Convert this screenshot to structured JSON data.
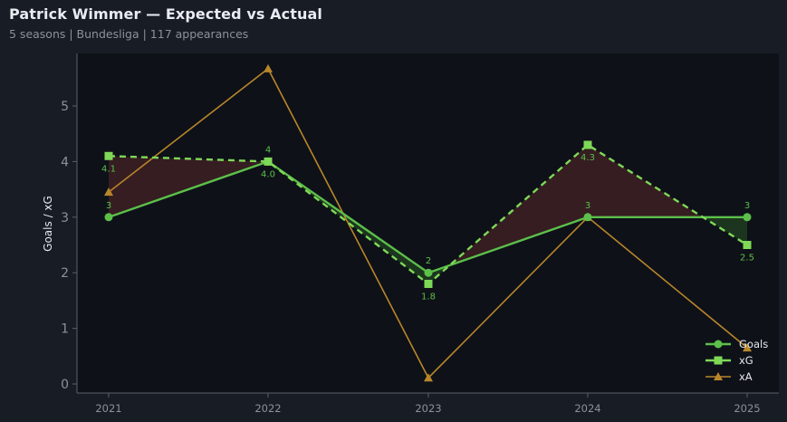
{
  "header": {
    "title": "Patrick Wimmer — Expected vs Actual",
    "subtitle": "5 seasons | Bundesliga | 117 appearances"
  },
  "chart_data": {
    "type": "line",
    "title": "Patrick Wimmer — Expected vs Actual",
    "subtitle": "5 seasons | Bundesliga | 117 appearances",
    "xlabel": "",
    "ylabel": "Goals / xG",
    "categories": [
      "2021",
      "2022",
      "2023",
      "2024",
      "2025"
    ],
    "yticks": [
      "0",
      "1",
      "2",
      "3",
      "4",
      "5"
    ],
    "ylim": [
      -0.17,
      5.95
    ],
    "grid": false,
    "legend_position": "lower right",
    "series": [
      {
        "name": "Goals",
        "values": [
          3,
          4,
          2,
          3,
          3
        ],
        "labels": [
          "3",
          "4",
          "2",
          "3",
          "3"
        ],
        "color": "#5cbf4a",
        "style": "solid",
        "marker": "circle"
      },
      {
        "name": "xG",
        "values": [
          4.1,
          4.0,
          1.8,
          4.3,
          2.5
        ],
        "labels": [
          "4.1",
          "4.0",
          "1.8",
          "4.3",
          "2.5"
        ],
        "color": "#7ed957",
        "style": "dashed",
        "marker": "square"
      },
      {
        "name": "xA",
        "values": [
          3.45,
          5.67,
          0.11,
          3.0,
          0.65
        ],
        "color": "#b8862a",
        "style": "solid",
        "marker": "triangle"
      }
    ],
    "fill_between": {
      "between": [
        "Goals",
        "xG"
      ],
      "underperform_color": "#3a1f22",
      "overperform_color": "#1e3a1f"
    }
  },
  "colors": {
    "background": "#181c24",
    "plot_background": "#0e1118",
    "axis": "#5a5f6a",
    "text_muted": "#8c919c"
  }
}
